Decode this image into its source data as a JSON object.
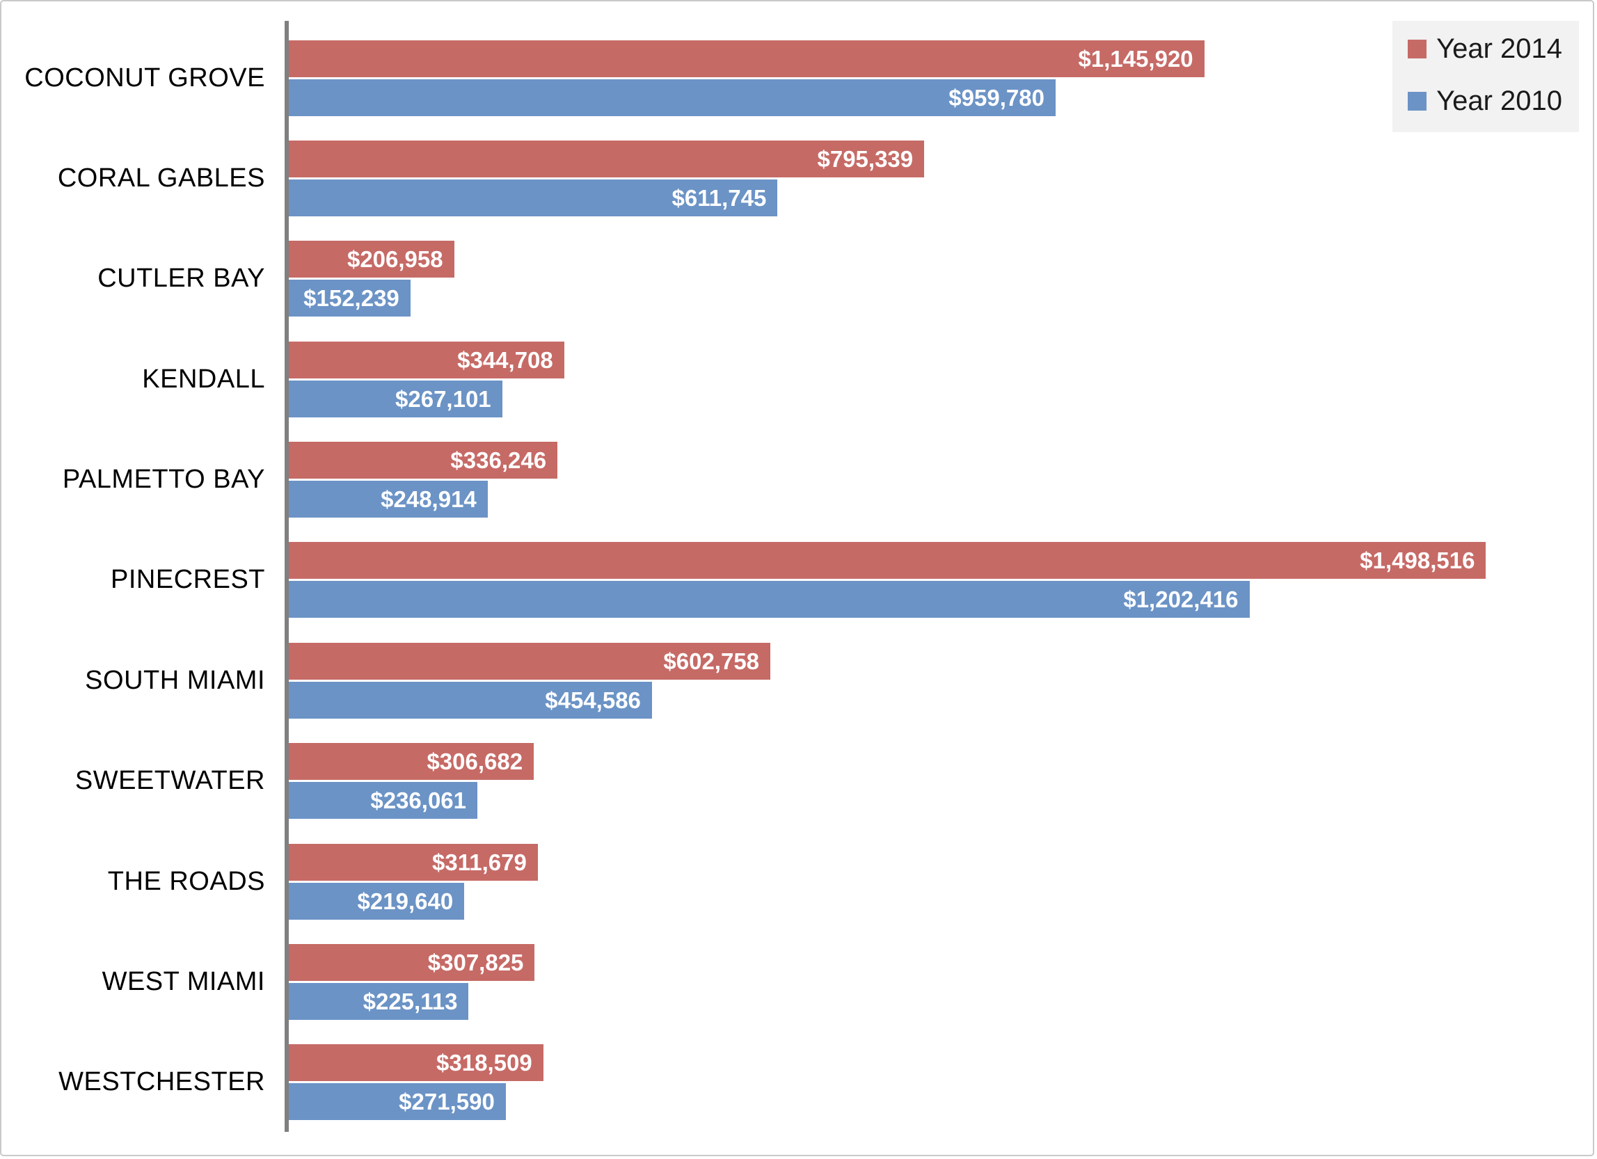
{
  "chart_data": {
    "type": "bar",
    "orientation": "horizontal",
    "title": "",
    "xlabel": "",
    "ylabel": "",
    "xlim": [
      0,
      1600000
    ],
    "grid": false,
    "legend_position": "top-right",
    "value_label_format": "$#,###",
    "categories": [
      "COCONUT GROVE",
      "CORAL GABLES",
      "CUTLER BAY",
      "KENDALL",
      "PALMETTO BAY",
      "PINECREST",
      "SOUTH MIAMI",
      "SWEETWATER",
      "THE ROADS",
      "WEST MIAMI",
      "WESTCHESTER"
    ],
    "series": [
      {
        "name": "Year 2014",
        "color": "#c66a66",
        "values": [
          1145920,
          795339,
          206958,
          344708,
          336246,
          1498516,
          602758,
          306682,
          311679,
          307825,
          318509
        ],
        "labels": [
          "$1,145,920",
          "$795,339",
          "$206,958",
          "$344,708",
          "$336,246",
          "$1,498,516",
          "$602,758",
          "$306,682",
          "$311,679",
          "$307,825",
          "$318,509"
        ]
      },
      {
        "name": "Year 2010",
        "color": "#6b93c6",
        "values": [
          959780,
          611745,
          152239,
          267101,
          248914,
          1202416,
          454586,
          236061,
          219640,
          225113,
          271590
        ],
        "labels": [
          "$959,780",
          "$611,745",
          "$152,239",
          "$267,101",
          "$248,914",
          "$1,202,416",
          "$454,586",
          "$236,061",
          "$219,640",
          "$225,113",
          "$271,590"
        ]
      }
    ]
  },
  "legend": {
    "items": [
      {
        "label": "Year 2014",
        "color": "#c66a66"
      },
      {
        "label": "Year 2010",
        "color": "#6b93c6"
      }
    ]
  },
  "colors": {
    "axis": "#808080",
    "frame_border": "#c9c9c9",
    "legend_background": "#f2f2f2",
    "value_text": "#ffffff",
    "category_text": "#000000"
  }
}
